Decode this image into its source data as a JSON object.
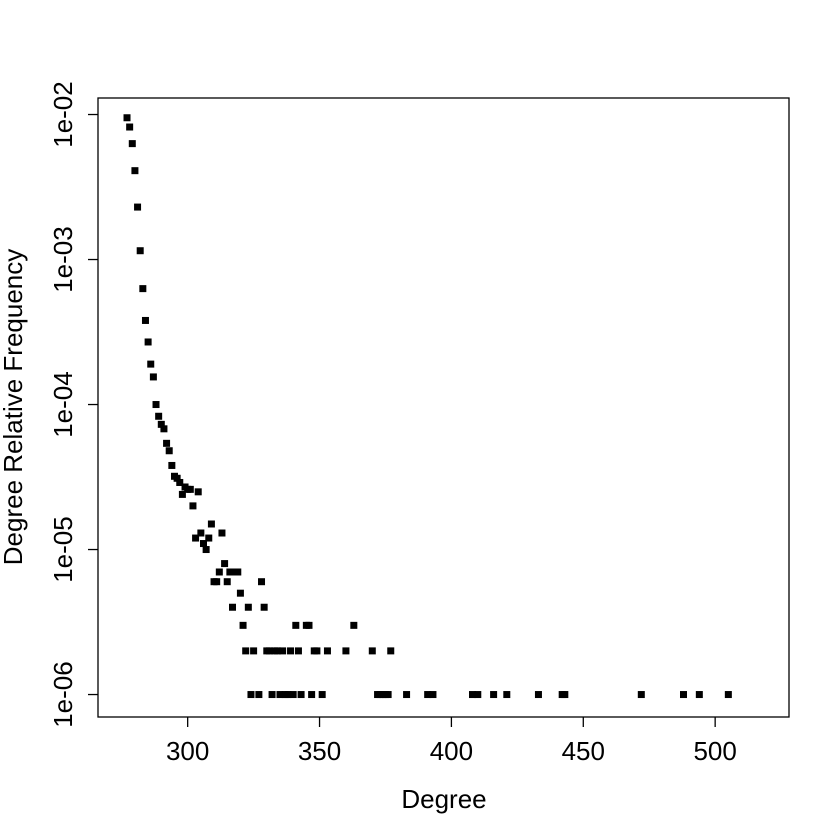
{
  "chart_data": {
    "type": "scatter",
    "title": "",
    "xlabel": "Degree",
    "ylabel": "Degree Relative Frequency",
    "yscale": "log",
    "xlim": [
      266,
      528
    ],
    "ylim": [
      7e-07,
      0.013
    ],
    "xticks": [
      300,
      350,
      400,
      450,
      500
    ],
    "xtick_labels": [
      "300",
      "350",
      "400",
      "450",
      "500"
    ],
    "yticks": [
      1e-06,
      1e-05,
      0.0001,
      0.001,
      0.01
    ],
    "ytick_labels": [
      "1e-06",
      "1e-05",
      "1e-04",
      "1e-03",
      "1e-02"
    ],
    "grid": false,
    "legend": "none",
    "marker": "square",
    "color": "#000000",
    "points": [
      [
        277,
        0.0095
      ],
      [
        278,
        0.0082
      ],
      [
        279,
        0.0063
      ],
      [
        280,
        0.0041
      ],
      [
        281,
        0.0023
      ],
      [
        282,
        0.00115
      ],
      [
        283,
        0.00063
      ],
      [
        284,
        0.00038
      ],
      [
        285,
        0.00027
      ],
      [
        286,
        0.00019
      ],
      [
        287,
        0.000155
      ],
      [
        288,
        0.0001
      ],
      [
        289,
        8.3e-05
      ],
      [
        290,
        7.3e-05
      ],
      [
        291,
        6.8e-05
      ],
      [
        292,
        5.4e-05
      ],
      [
        293,
        4.8e-05
      ],
      [
        294,
        3.8e-05
      ],
      [
        295,
        3.2e-05
      ],
      [
        296,
        3.1e-05
      ],
      [
        297,
        2.9e-05
      ],
      [
        298,
        2.4e-05
      ],
      [
        299,
        2.7e-05
      ],
      [
        300,
        2.6e-05
      ],
      [
        301,
        2.6e-05
      ],
      [
        302,
        2e-05
      ],
      [
        303,
        1.2e-05
      ],
      [
        304,
        2.5e-05
      ],
      [
        305,
        1.3e-05
      ],
      [
        306,
        1.1e-05
      ],
      [
        307,
        1e-05
      ],
      [
        308,
        1.2e-05
      ],
      [
        309,
        1.5e-05
      ],
      [
        310,
        6e-06
      ],
      [
        311,
        6e-06
      ],
      [
        312,
        7e-06
      ],
      [
        313,
        1.3e-05
      ],
      [
        314,
        8e-06
      ],
      [
        315,
        6e-06
      ],
      [
        316,
        7e-06
      ],
      [
        317,
        4e-06
      ],
      [
        318,
        7e-06
      ],
      [
        319,
        7e-06
      ],
      [
        320,
        5e-06
      ],
      [
        321,
        3e-06
      ],
      [
        322,
        2e-06
      ],
      [
        323,
        4e-06
      ],
      [
        324,
        1e-06
      ],
      [
        325,
        2e-06
      ],
      [
        327,
        1e-06
      ],
      [
        328,
        6e-06
      ],
      [
        329,
        4e-06
      ],
      [
        330,
        2e-06
      ],
      [
        331,
        2e-06
      ],
      [
        332,
        1e-06
      ],
      [
        333,
        2e-06
      ],
      [
        334,
        2e-06
      ],
      [
        335,
        1e-06
      ],
      [
        336,
        2e-06
      ],
      [
        337,
        1e-06
      ],
      [
        338,
        1e-06
      ],
      [
        339,
        2e-06
      ],
      [
        340,
        1e-06
      ],
      [
        341,
        3e-06
      ],
      [
        342,
        2e-06
      ],
      [
        343,
        1e-06
      ],
      [
        345,
        3e-06
      ],
      [
        346,
        3e-06
      ],
      [
        347,
        1e-06
      ],
      [
        348,
        2e-06
      ],
      [
        349,
        2e-06
      ],
      [
        351,
        1e-06
      ],
      [
        353,
        2e-06
      ],
      [
        360,
        2e-06
      ],
      [
        363,
        3e-06
      ],
      [
        370,
        2e-06
      ],
      [
        372,
        1e-06
      ],
      [
        373,
        1e-06
      ],
      [
        374,
        1e-06
      ],
      [
        375,
        1e-06
      ],
      [
        376,
        1e-06
      ],
      [
        377,
        2e-06
      ],
      [
        383,
        1e-06
      ],
      [
        391,
        1e-06
      ],
      [
        393,
        1e-06
      ],
      [
        408,
        1e-06
      ],
      [
        410,
        1e-06
      ],
      [
        416,
        1e-06
      ],
      [
        421,
        1e-06
      ],
      [
        433,
        1e-06
      ],
      [
        442,
        1e-06
      ],
      [
        443,
        1e-06
      ],
      [
        472,
        1e-06
      ],
      [
        488,
        1e-06
      ],
      [
        494,
        1e-06
      ],
      [
        505,
        1e-06
      ]
    ]
  }
}
